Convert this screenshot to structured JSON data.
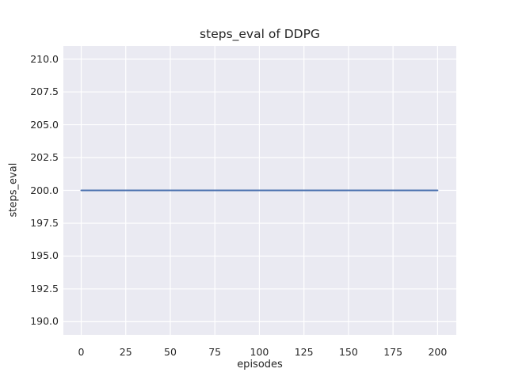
{
  "chart_data": {
    "type": "line",
    "title": "steps_eval of DDPG",
    "xlabel": "episodes",
    "ylabel": "steps_eval",
    "xlim": [
      -10,
      210.5
    ],
    "ylim": [
      189,
      211
    ],
    "xticks": {
      "values": [
        0,
        25,
        50,
        75,
        100,
        125,
        150,
        175,
        200
      ],
      "labels": [
        "0",
        "25",
        "50",
        "75",
        "100",
        "125",
        "150",
        "175",
        "200"
      ]
    },
    "yticks": {
      "values": [
        190,
        192.5,
        195,
        197.5,
        200,
        202.5,
        205,
        207.5,
        210
      ],
      "labels": [
        "190.0",
        "192.5",
        "195.0",
        "197.5",
        "200.0",
        "202.5",
        "205.0",
        "207.5",
        "210.0"
      ]
    },
    "grid": true,
    "legend_position": "none",
    "series": [
      {
        "name": "steps_eval",
        "color": "#4C72B0",
        "points": [
          [
            0,
            200
          ],
          [
            25,
            200
          ],
          [
            50,
            200
          ],
          [
            75,
            200
          ],
          [
            100,
            200
          ],
          [
            125,
            200
          ],
          [
            150,
            200
          ],
          [
            175,
            200
          ],
          [
            200,
            200
          ]
        ]
      }
    ],
    "colors": {
      "figure_background": "#FFFFFF",
      "axes_background": "#EAEAF2",
      "grid": "#FFFFFF",
      "text": "#262626",
      "line": "#4C72B0"
    }
  }
}
